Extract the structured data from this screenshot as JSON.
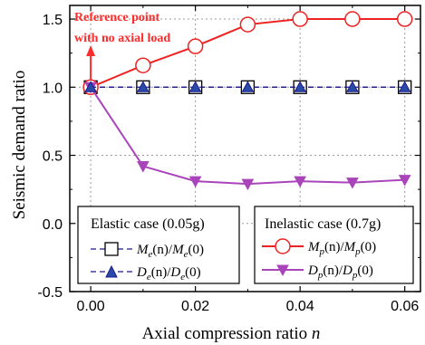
{
  "chart_data": {
    "type": "line",
    "xlabel": "Axial compression ratio",
    "xlabel_var": "n",
    "ylabel": "Seismic demand ratio",
    "xlim": [
      -0.004,
      0.063
    ],
    "ylim": [
      -0.5,
      1.6
    ],
    "xticks": [
      0.0,
      0.02,
      0.04,
      0.06
    ],
    "xtick_labels": [
      "0.00",
      "0.02",
      "0.04",
      "0.06"
    ],
    "yticks": [
      -0.5,
      0.0,
      0.5,
      1.0,
      1.5
    ],
    "ytick_labels": [
      "-0.5",
      "0.0",
      "0.5",
      "1.0",
      "1.5"
    ],
    "grid": true,
    "x": [
      0.0,
      0.01,
      0.02,
      0.03,
      0.04,
      0.05,
      0.06
    ],
    "series": [
      {
        "key": "Me",
        "values": [
          1.0,
          1.0,
          1.0,
          1.0,
          1.0,
          1.0,
          1.0
        ],
        "color": "#1a1a8c",
        "marker": "square-open",
        "line": "dashed"
      },
      {
        "key": "De",
        "values": [
          1.0,
          1.0,
          1.0,
          1.0,
          1.0,
          1.0,
          1.0
        ],
        "color": "#1a1a8c",
        "marker": "triangle-up-filled",
        "line": "dashed"
      },
      {
        "key": "Mp",
        "values": [
          1.0,
          1.16,
          1.3,
          1.46,
          1.5,
          1.5,
          1.5
        ],
        "color": "#ee2222",
        "marker": "circle-open",
        "line": "solid"
      },
      {
        "key": "Dp",
        "values": [
          1.0,
          0.42,
          0.31,
          0.29,
          0.31,
          0.3,
          0.32
        ],
        "color": "#aa44bb",
        "marker": "triangle-down-filled",
        "line": "solid"
      }
    ],
    "legend_elastic": {
      "title": "Elastic case (0.05g)",
      "items": [
        {
          "letter": "M",
          "sub": "e",
          "arg": "(n)"
        },
        {
          "letter": "D",
          "sub": "e",
          "arg": "(n)"
        }
      ]
    },
    "legend_inelastic": {
      "title": "Inelastic case (0.7g)",
      "items": [
        {
          "letter": "M",
          "sub": "p",
          "arg": "(n)"
        },
        {
          "letter": "D",
          "sub": "p",
          "arg": "(n)"
        }
      ]
    },
    "zero_arg": "(0)",
    "slash": "/",
    "annotation": {
      "line1": "Reference point",
      "line2": "with no axial load",
      "color": "#ff2a2a"
    }
  }
}
